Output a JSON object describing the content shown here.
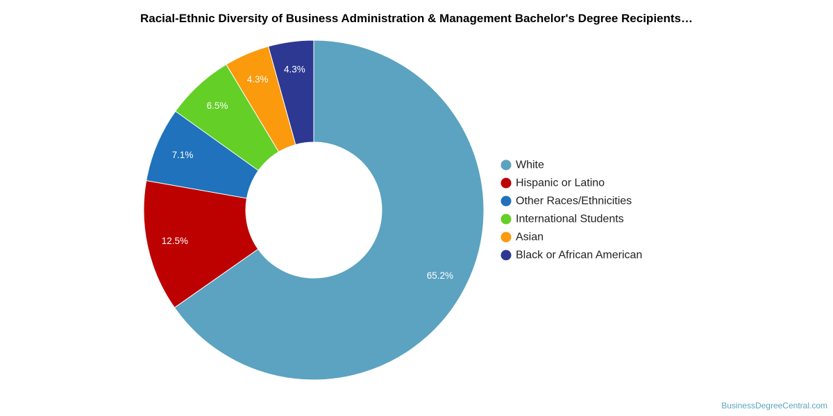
{
  "chart_data": {
    "type": "pie",
    "variant": "donut",
    "title": "Racial-Ethnic Diversity of Business Administration & Management Bachelor's Degree Recipients…",
    "slices": [
      {
        "label": "White",
        "value": 65.2,
        "display": "65.2%",
        "color": "#5ba3c0"
      },
      {
        "label": "Hispanic or Latino",
        "value": 12.5,
        "display": "12.5%",
        "color": "#bd0000"
      },
      {
        "label": "Other Races/Ethnicities",
        "value": 7.1,
        "display": "7.1%",
        "color": "#1f72bb"
      },
      {
        "label": "International Students",
        "value": 6.5,
        "display": "6.5%",
        "color": "#63cf27"
      },
      {
        "label": "Asian",
        "value": 4.3,
        "display": "4.3%",
        "color": "#fb9a0c"
      },
      {
        "label": "Black or African American",
        "value": 4.3,
        "display": "4.3%",
        "color": "#2c3892"
      }
    ],
    "legend_position": "right",
    "slice_order": "clockwise-from-top"
  },
  "credit": "BusinessDegreeCentral.com"
}
